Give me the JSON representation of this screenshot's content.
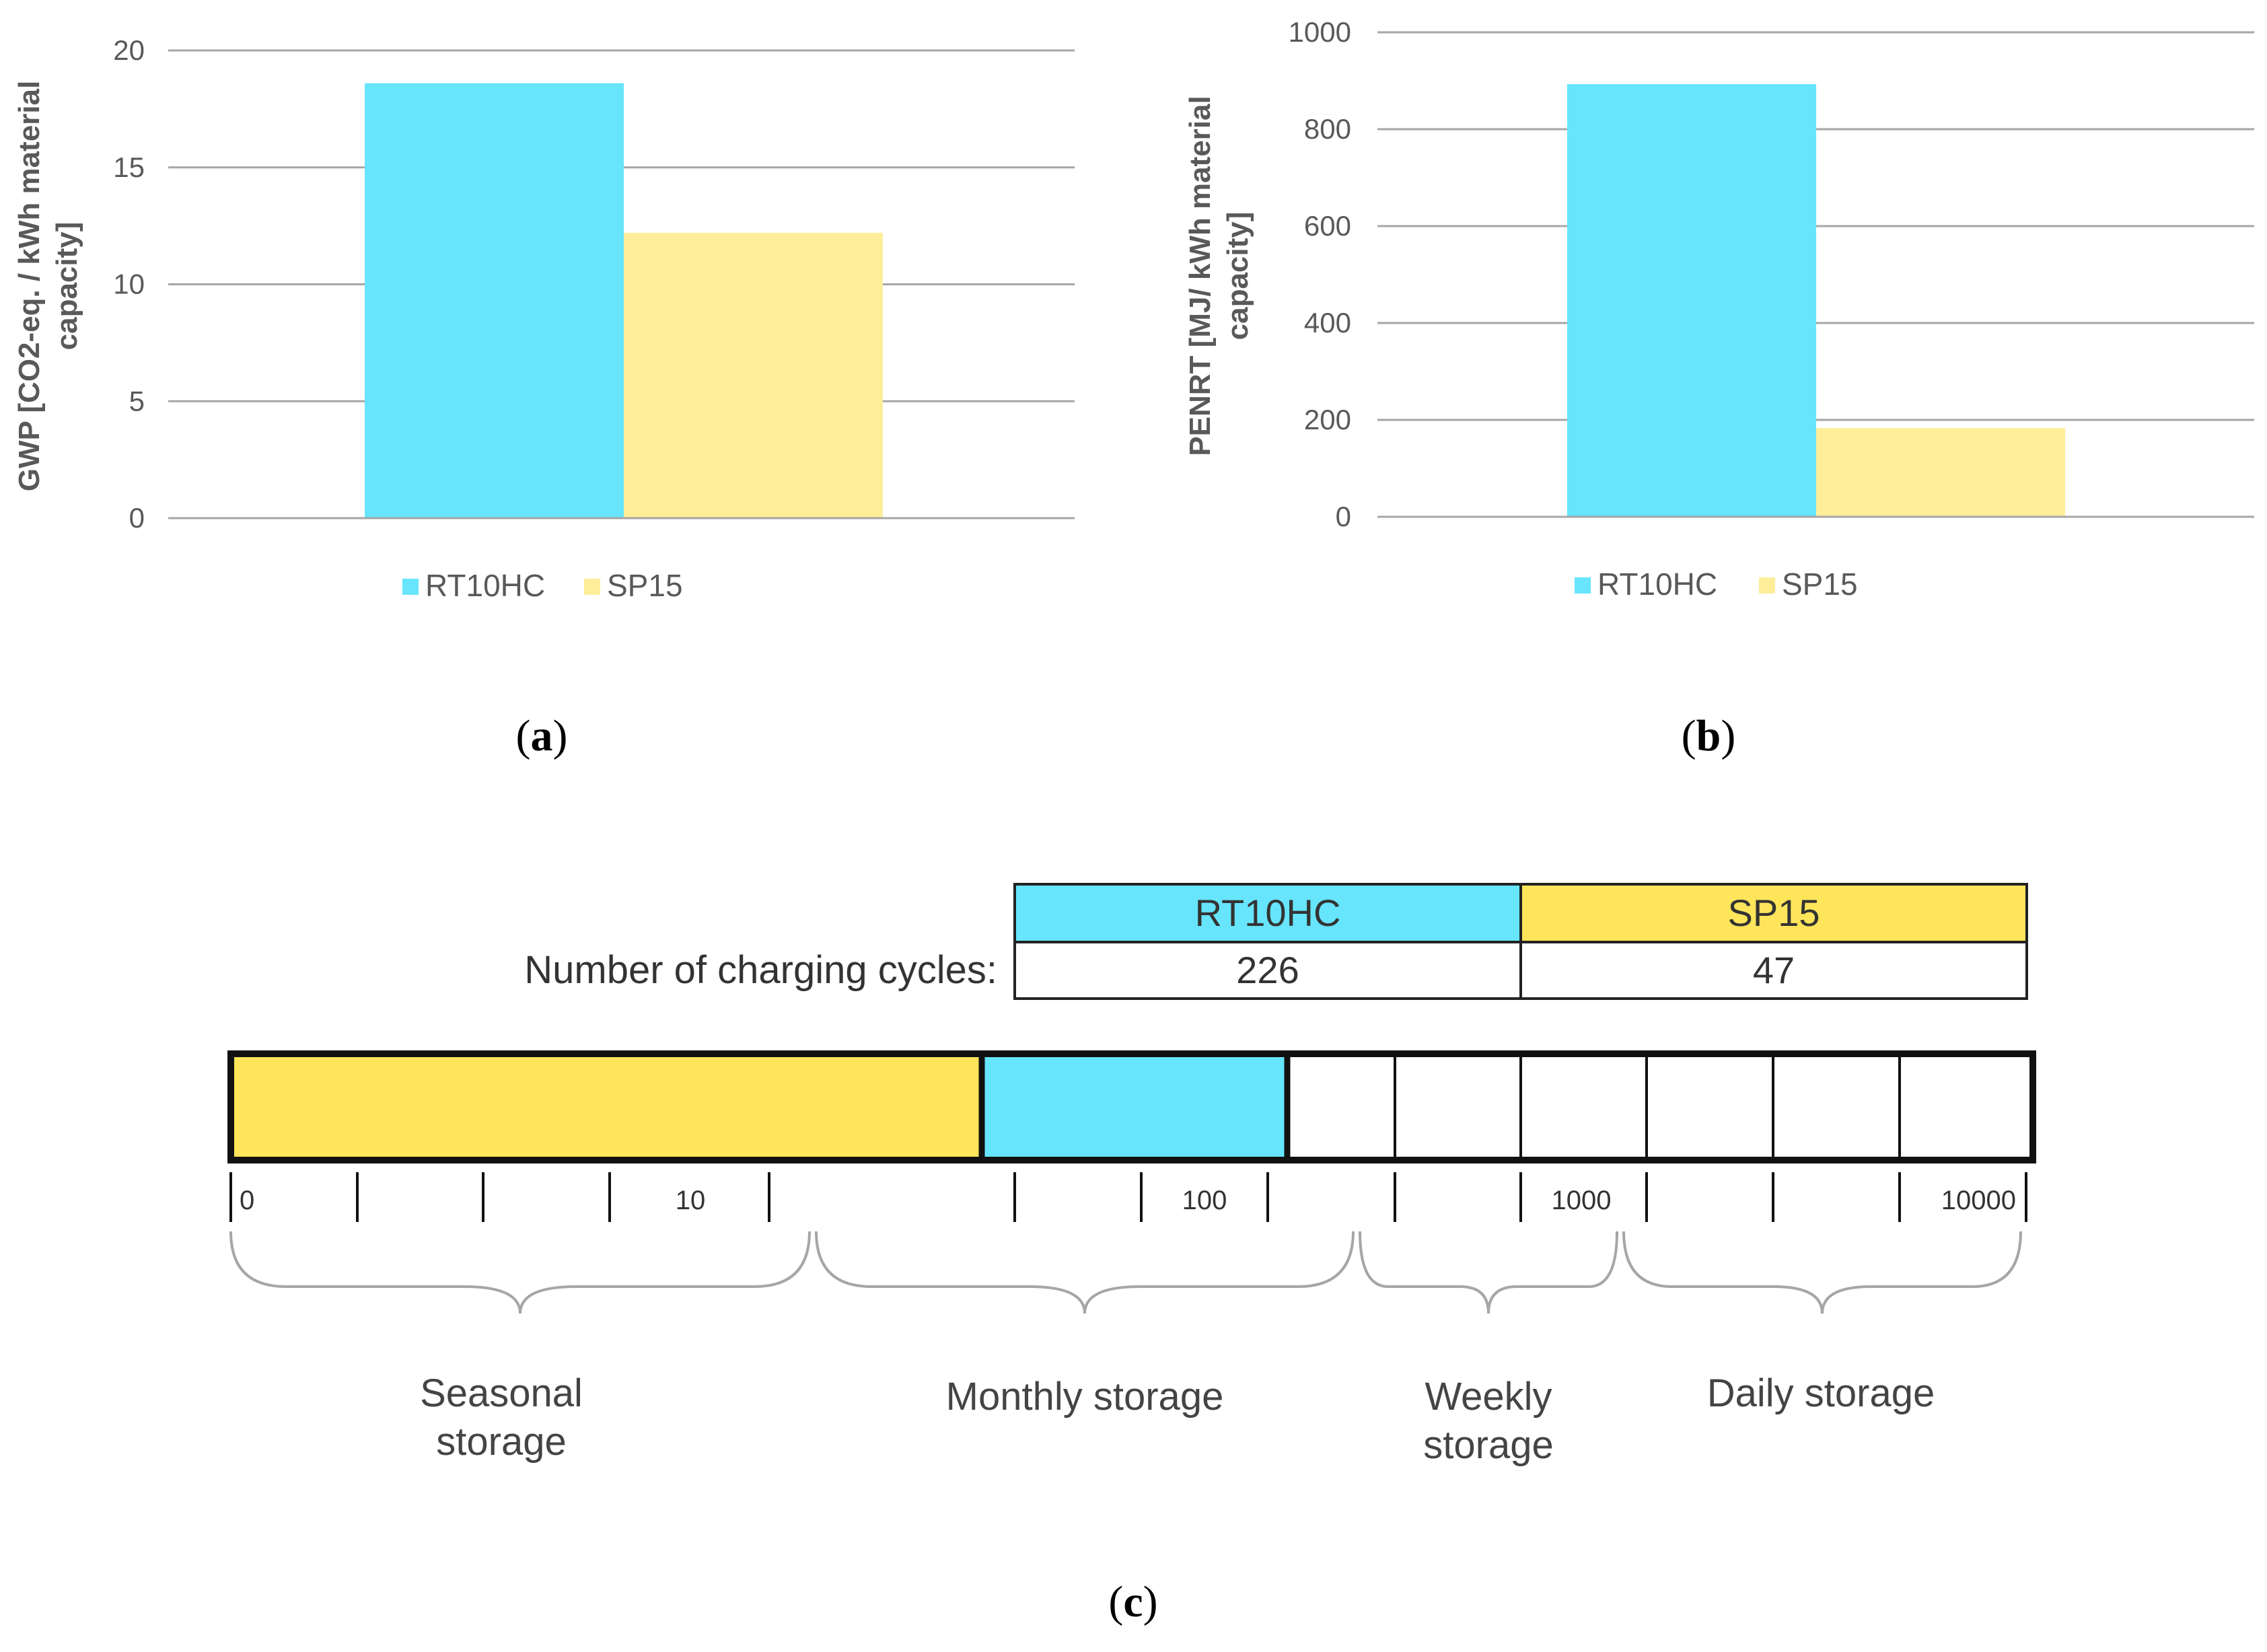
{
  "panels": {
    "a": {
      "label_open": "(",
      "label_letter": "a",
      "label_close": ")"
    },
    "b": {
      "label_open": "(",
      "label_letter": "b",
      "label_close": ")"
    },
    "c": {
      "label_open": "(",
      "label_letter": "c",
      "label_close": ")"
    }
  },
  "chart_data": [
    {
      "type": "bar",
      "panel": "a",
      "categories": [
        ""
      ],
      "series": [
        {
          "name": "RT10HC",
          "values": [
            18.6
          ],
          "color": "#66E5FC"
        },
        {
          "name": "SP15",
          "values": [
            12.2
          ],
          "color": "#FEEE99"
        }
      ],
      "ylabel_line1": "GWP [CO2-eq. / kWh material",
      "ylabel_line2": "capacity]",
      "ylim": [
        0,
        20
      ],
      "yticks": [
        0,
        5,
        10,
        15,
        20
      ],
      "grid": true,
      "legend_position": "bottom"
    },
    {
      "type": "bar",
      "panel": "b",
      "categories": [
        ""
      ],
      "series": [
        {
          "name": "RT10HC",
          "values": [
            893
          ],
          "color": "#66E5FC"
        },
        {
          "name": "SP15",
          "values": [
            183
          ],
          "color": "#FEEE99"
        }
      ],
      "ylabel_line1": "PENRT [MJ/ kWh material",
      "ylabel_line2": "capacity]",
      "ylim": [
        0,
        1000
      ],
      "yticks": [
        0,
        200,
        400,
        600,
        800,
        1000
      ],
      "grid": true,
      "legend_position": "bottom"
    }
  ],
  "cycles_panel": {
    "row_label": "Number of charging cycles:",
    "columns": [
      {
        "name": "RT10HC",
        "cycles": "226",
        "color": "#66E5FC"
      },
      {
        "name": "SP15",
        "cycles": "47",
        "color": "#FEE55A"
      }
    ],
    "scale_labels": [
      "0",
      "10",
      "100",
      "1000",
      "10000"
    ],
    "categories": [
      {
        "line1": "Seasonal",
        "line2": "storage"
      },
      {
        "line1": "Monthly storage",
        "line2": ""
      },
      {
        "line1": "Weekly",
        "line2": "storage"
      },
      {
        "line1": "Daily storage",
        "line2": ""
      }
    ]
  }
}
